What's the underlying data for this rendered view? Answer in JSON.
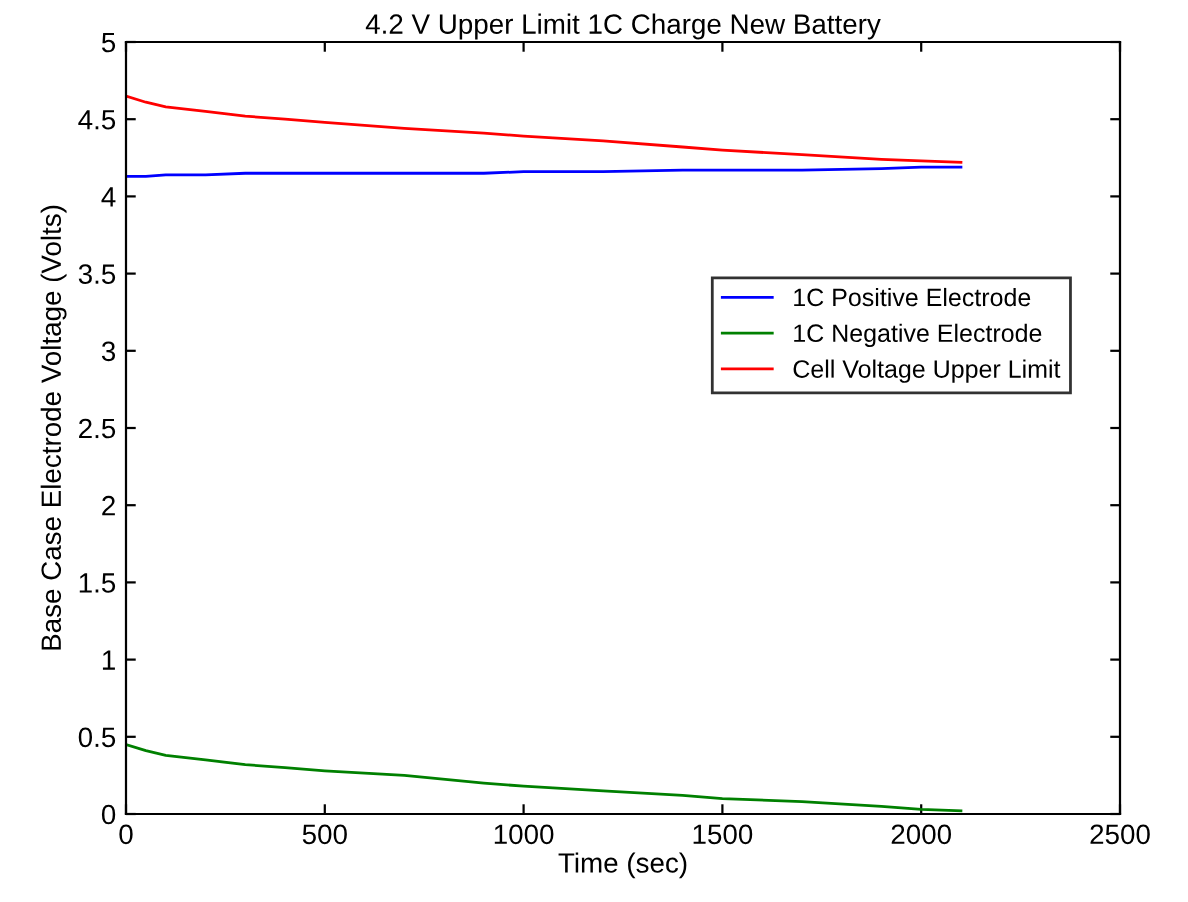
{
  "chart_data": {
    "type": "line",
    "title": "4.2 V Upper Limit 1C Charge New Battery",
    "xlabel": "Time (sec)",
    "ylabel": "Base Case Electrode Voltage (Volts)",
    "x": [
      0,
      50,
      100,
      200,
      300,
      400,
      500,
      700,
      900,
      1000,
      1200,
      1400,
      1500,
      1700,
      1900,
      2000,
      2100
    ],
    "series": [
      {
        "name": "1C Positive Electrode",
        "color": "#0000ff",
        "values": [
          4.13,
          4.13,
          4.14,
          4.14,
          4.15,
          4.15,
          4.15,
          4.15,
          4.15,
          4.16,
          4.16,
          4.17,
          4.17,
          4.17,
          4.18,
          4.19,
          4.19
        ]
      },
      {
        "name": "1C Negative Electrode",
        "color": "#008000",
        "values": [
          0.45,
          0.41,
          0.38,
          0.35,
          0.32,
          0.3,
          0.28,
          0.25,
          0.2,
          0.18,
          0.15,
          0.12,
          0.1,
          0.08,
          0.05,
          0.03,
          0.02
        ]
      },
      {
        "name": "Cell Voltage Upper Limit",
        "color": "#ff0000",
        "values": [
          4.65,
          4.61,
          4.58,
          4.55,
          4.52,
          4.5,
          4.48,
          4.44,
          4.41,
          4.39,
          4.36,
          4.32,
          4.3,
          4.27,
          4.24,
          4.23,
          4.22
        ]
      }
    ],
    "xlim": [
      0,
      2500
    ],
    "xticks": [
      0,
      500,
      1000,
      1500,
      2000,
      2500
    ],
    "ylim": [
      0,
      5
    ],
    "yticks": [
      0,
      0.5,
      1,
      1.5,
      2,
      2.5,
      3,
      3.5,
      4,
      4.5,
      5
    ],
    "grid": false,
    "legend": "center right"
  }
}
